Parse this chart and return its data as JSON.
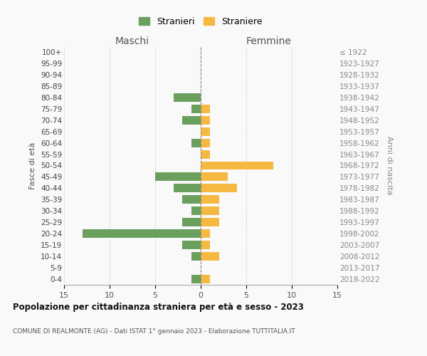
{
  "age_groups": [
    "100+",
    "95-99",
    "90-94",
    "85-89",
    "80-84",
    "75-79",
    "70-74",
    "65-69",
    "60-64",
    "55-59",
    "50-54",
    "45-49",
    "40-44",
    "35-39",
    "30-34",
    "25-29",
    "20-24",
    "15-19",
    "10-14",
    "5-9",
    "0-4"
  ],
  "birth_years": [
    "≤ 1922",
    "1923-1927",
    "1928-1932",
    "1933-1937",
    "1938-1942",
    "1943-1947",
    "1948-1952",
    "1953-1957",
    "1958-1962",
    "1963-1967",
    "1968-1972",
    "1973-1977",
    "1978-1982",
    "1983-1987",
    "1988-1992",
    "1993-1997",
    "1998-2002",
    "2003-2007",
    "2008-2012",
    "2013-2017",
    "2018-2022"
  ],
  "males": [
    0,
    0,
    0,
    0,
    3,
    1,
    2,
    0,
    1,
    0,
    0,
    5,
    3,
    2,
    1,
    2,
    13,
    2,
    1,
    0,
    1
  ],
  "females": [
    0,
    0,
    0,
    0,
    0,
    1,
    1,
    1,
    1,
    1,
    8,
    3,
    4,
    2,
    2,
    2,
    1,
    1,
    2,
    0,
    1
  ],
  "male_color": "#6a9f5e",
  "female_color": "#f5b942",
  "male_label": "Stranieri",
  "female_label": "Straniere",
  "title": "Popolazione per cittadinanza straniera per età e sesso - 2023",
  "subtitle": "COMUNE DI REALMONTE (AG) - Dati ISTAT 1° gennaio 2023 - Elaborazione TUTTITALIA.IT",
  "header_left": "Maschi",
  "header_right": "Femmine",
  "ylabel_left": "Fasce di età",
  "ylabel_right": "Anni di nascita",
  "xlim": 15,
  "background_color": "#f9f9f9",
  "grid_color": "#cccccc"
}
